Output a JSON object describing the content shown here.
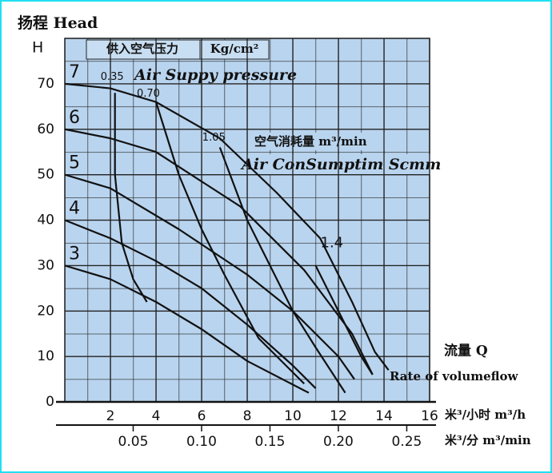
{
  "chart_data": {
    "type": "line",
    "title": "扬程 Head",
    "y_label": "H",
    "x_label": "流量 Q",
    "x_label_en": "Rate of volumeflow",
    "x_unit": "米³/小时 m³/h",
    "x2_unit": "米³/分 m³/min",
    "pressure_header": "供入空气压力",
    "pressure_unit": "Kg/cm²",
    "pressure_label_en": "Air Suppy pressure",
    "consumption_header": "空气消耗量 m³/min",
    "consumption_label_en": "Air ConSumptim Scmm",
    "xlim": [
      0,
      16
    ],
    "xticks": [
      2,
      4,
      6,
      8,
      10,
      12,
      14,
      16
    ],
    "x2lim": [
      0,
      0.2667
    ],
    "x2ticks": [
      {
        "value": 0.05,
        "label": "0.05"
      },
      {
        "value": 0.1,
        "label": "0.10"
      },
      {
        "value": 0.15,
        "label": "0.15"
      },
      {
        "value": 0.2,
        "label": "0.20"
      },
      {
        "value": 0.25,
        "label": "0.25"
      }
    ],
    "ylim": [
      0,
      80
    ],
    "yticks": [
      0,
      10,
      20,
      30,
      40,
      50,
      60,
      70
    ],
    "grid": true,
    "series": [
      {
        "name": "7",
        "group": "pressure",
        "color": "#111111",
        "x": [
          0,
          2,
          4,
          6.8,
          9.3,
          11.2,
          12.6,
          13.6,
          14.2
        ],
        "values": [
          70,
          69,
          66,
          58,
          46,
          36,
          22,
          11,
          7
        ]
      },
      {
        "name": "6",
        "group": "pressure",
        "color": "#111111",
        "x": [
          0,
          2,
          4,
          7.7,
          10.5,
          12.6,
          13.5
        ],
        "values": [
          60,
          58,
          55,
          43,
          29,
          15,
          6
        ]
      },
      {
        "name": "5",
        "group": "pressure",
        "color": "#111111",
        "x": [
          0,
          2,
          5,
          8,
          10,
          12,
          12.7
        ],
        "values": [
          50,
          47,
          38,
          28,
          20,
          10,
          5
        ]
      },
      {
        "name": "4",
        "group": "pressure",
        "color": "#111111",
        "x": [
          0,
          2,
          4,
          6,
          8,
          10,
          11
        ],
        "values": [
          40,
          36,
          31,
          25,
          17,
          8,
          3
        ]
      },
      {
        "name": "3",
        "group": "pressure",
        "color": "#111111",
        "x": [
          0,
          2,
          4,
          6,
          8,
          10.7
        ],
        "values": [
          30,
          27,
          22,
          16,
          9,
          2
        ]
      },
      {
        "name": "0.35",
        "group": "air",
        "color": "#111111",
        "x": [
          2.2,
          2.2,
          2.5,
          3.0,
          3.6
        ],
        "values": [
          68,
          50,
          35,
          27,
          22
        ]
      },
      {
        "name": "0.70",
        "group": "air",
        "color": "#111111",
        "x": [
          4,
          5,
          6,
          7,
          8.5,
          10.5
        ],
        "values": [
          66,
          50,
          38,
          28,
          14,
          4
        ]
      },
      {
        "name": "1.05",
        "group": "air",
        "color": "#111111",
        "x": [
          6.8,
          8,
          9,
          10,
          11,
          12.3
        ],
        "values": [
          56,
          40,
          30,
          20,
          12,
          2
        ]
      },
      {
        "name": "1.4",
        "group": "air",
        "color": "#111111",
        "x": [
          11,
          12,
          13,
          13.5
        ],
        "values": [
          30,
          20,
          10,
          6
        ]
      }
    ]
  }
}
